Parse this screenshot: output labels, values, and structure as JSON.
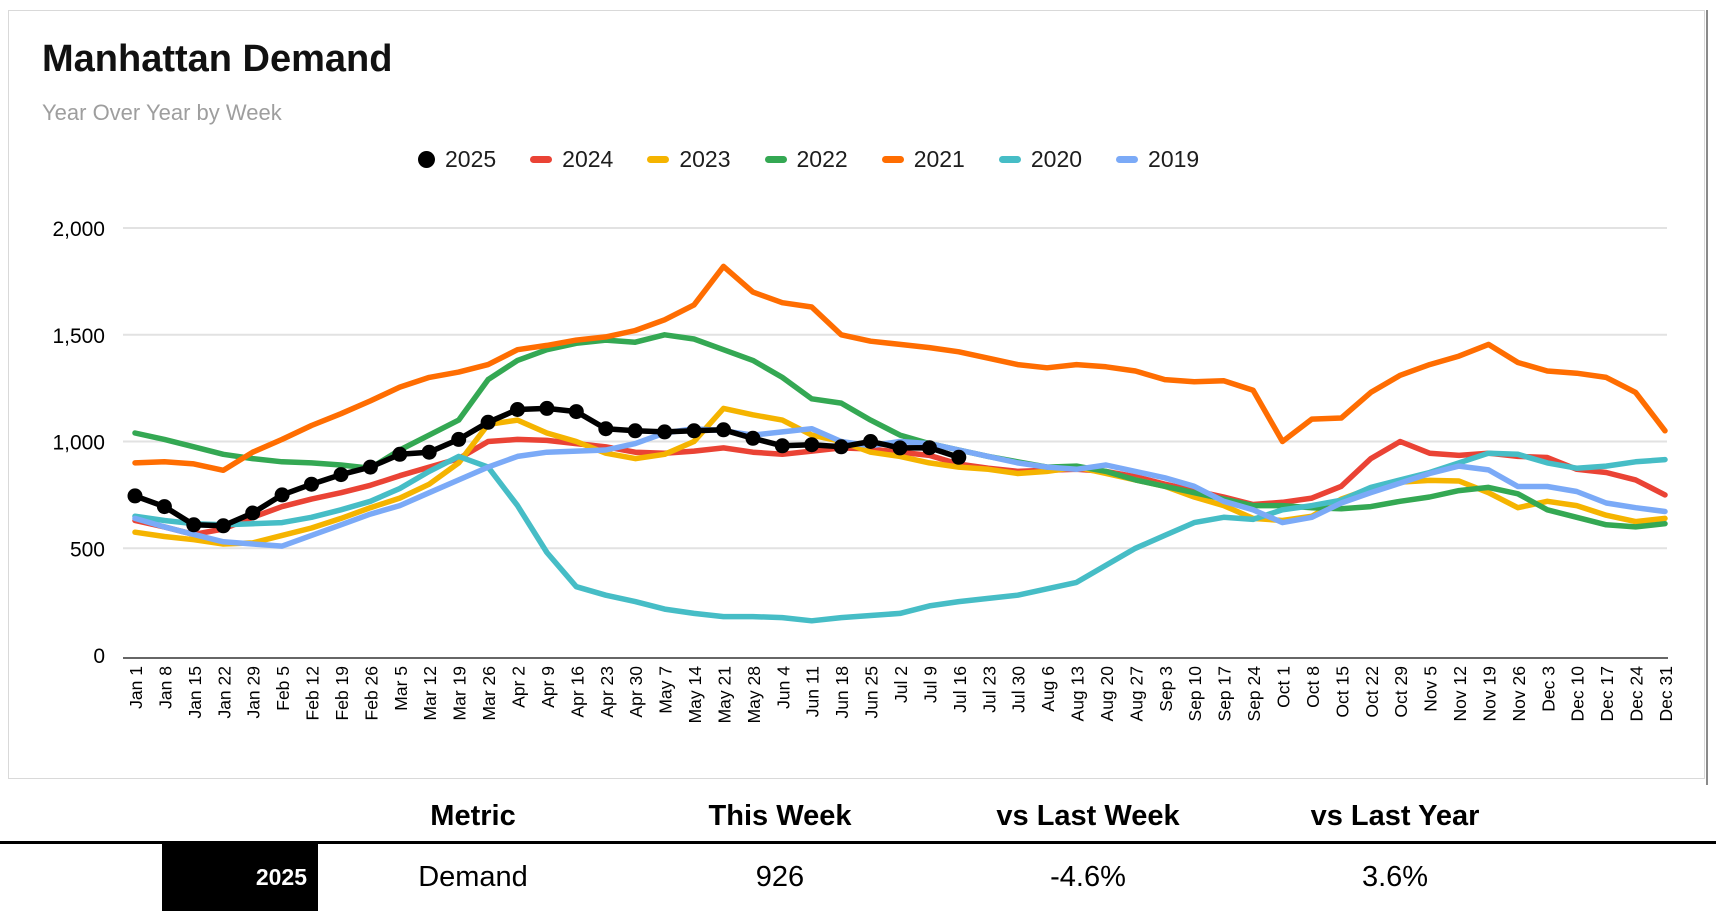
{
  "card": {
    "title": "Manhattan Demand",
    "subtitle": "Year Over Year by Week"
  },
  "chart_data": {
    "type": "line",
    "title": "Manhattan Demand",
    "subtitle": "Year Over Year by Week",
    "grid": true,
    "legend_position": "top",
    "ylim": [
      0,
      2000
    ],
    "y_ticks": [
      {
        "value": 2000,
        "label": "2,000"
      },
      {
        "value": 1500,
        "label": "1,500"
      },
      {
        "value": 1000,
        "label": "1,000"
      },
      {
        "value": 500,
        "label": "500"
      },
      {
        "value": 0,
        "label": "0"
      }
    ],
    "x_labels": [
      "Jan 1",
      "Jan 8",
      "Jan 15",
      "Jan 22",
      "Jan 29",
      "Feb 5",
      "Feb 12",
      "Feb 19",
      "Feb 26",
      "Mar 5",
      "Mar 12",
      "Mar 19",
      "Mar 26",
      "Apr 2",
      "Apr 9",
      "Apr 16",
      "Apr 23",
      "Apr 30",
      "May 7",
      "May 14",
      "May 21",
      "May 28",
      "Jun 4",
      "Jun 11",
      "Jun 18",
      "Jun 25",
      "Jul 2",
      "Jul 9",
      "Jul 16",
      "Jul 23",
      "Jul 30",
      "Aug 6",
      "Aug 13",
      "Aug 20",
      "Aug 27",
      "Sep 3",
      "Sep 10",
      "Sep 17",
      "Sep 24",
      "Oct 1",
      "Oct 8",
      "Oct 15",
      "Oct 22",
      "Oct 29",
      "Nov 5",
      "Nov 12",
      "Nov 19",
      "Nov 26",
      "Dec 3",
      "Dec 10",
      "Dec 17",
      "Dec 24",
      "Dec 31"
    ],
    "series": [
      {
        "name": "2024",
        "color": "#ea4335",
        "marker": "none",
        "values": [
          630,
          600,
          565,
          590,
          645,
          695,
          730,
          760,
          795,
          840,
          880,
          920,
          1000,
          1010,
          1005,
          990,
          975,
          950,
          945,
          955,
          970,
          950,
          940,
          955,
          970,
          965,
          950,
          935,
          894,
          875,
          860,
          865,
          870,
          860,
          835,
          800,
          770,
          740,
          705,
          715,
          735,
          790,
          920,
          1000,
          945,
          935,
          945,
          930,
          925,
          870,
          855,
          820,
          750
        ]
      },
      {
        "name": "2023",
        "color": "#f5b400",
        "marker": "none",
        "values": [
          575,
          555,
          540,
          520,
          525,
          560,
          595,
          640,
          690,
          735,
          800,
          900,
          1080,
          1100,
          1040,
          1000,
          945,
          920,
          940,
          1000,
          1155,
          1125,
          1100,
          1030,
          1000,
          950,
          930,
          900,
          880,
          870,
          850,
          860,
          880,
          850,
          820,
          790,
          740,
          700,
          640,
          630,
          650,
          730,
          780,
          810,
          818,
          815,
          760,
          690,
          720,
          700,
          655,
          625,
          640
        ]
      },
      {
        "name": "2022",
        "color": "#34a853",
        "marker": "none",
        "values": [
          1040,
          1010,
          975,
          940,
          920,
          905,
          900,
          890,
          875,
          960,
          1030,
          1100,
          1290,
          1380,
          1430,
          1460,
          1475,
          1465,
          1500,
          1480,
          1430,
          1380,
          1300,
          1200,
          1180,
          1100,
          1030,
          990,
          960,
          930,
          905,
          880,
          885,
          860,
          820,
          790,
          760,
          730,
          700,
          700,
          690,
          685,
          695,
          720,
          740,
          770,
          785,
          755,
          680,
          645,
          610,
          600,
          615
        ]
      },
      {
        "name": "2021",
        "color": "#ff6d01",
        "marker": "none",
        "values": [
          900,
          905,
          895,
          865,
          950,
          1010,
          1075,
          1130,
          1190,
          1255,
          1300,
          1325,
          1360,
          1430,
          1450,
          1475,
          1490,
          1520,
          1570,
          1640,
          1820,
          1700,
          1650,
          1630,
          1500,
          1470,
          1455,
          1440,
          1420,
          1390,
          1360,
          1345,
          1360,
          1350,
          1330,
          1290,
          1280,
          1285,
          1240,
          1000,
          1105,
          1110,
          1230,
          1310,
          1360,
          1400,
          1455,
          1370,
          1330,
          1320,
          1300,
          1230,
          1050
        ]
      },
      {
        "name": "2020",
        "color": "#46bdc6",
        "marker": "none",
        "values": [
          650,
          630,
          615,
          610,
          615,
          620,
          645,
          680,
          720,
          780,
          860,
          930,
          880,
          700,
          480,
          320,
          280,
          250,
          215,
          195,
          180,
          180,
          175,
          160,
          175,
          185,
          195,
          230,
          250,
          265,
          280,
          310,
          340,
          420,
          500,
          560,
          620,
          645,
          635,
          680,
          700,
          725,
          785,
          820,
          855,
          900,
          945,
          940,
          900,
          875,
          885,
          905,
          915
        ]
      },
      {
        "name": "2019",
        "color": "#7baaf7",
        "marker": "none",
        "values": [
          640,
          600,
          565,
          530,
          520,
          510,
          560,
          610,
          660,
          700,
          760,
          820,
          880,
          930,
          950,
          955,
          960,
          990,
          1040,
          1060,
          1050,
          1030,
          1045,
          1060,
          1000,
          980,
          1000,
          990,
          960,
          930,
          900,
          880,
          870,
          890,
          860,
          830,
          790,
          720,
          680,
          620,
          645,
          712,
          760,
          805,
          850,
          885,
          867,
          789,
          789,
          766,
          712,
          690,
          672
        ]
      },
      {
        "name": "2025",
        "color": "#000000",
        "marker": "circle",
        "values": [
          745,
          695,
          610,
          605,
          665,
          750,
          800,
          845,
          880,
          940,
          950,
          1010,
          1090,
          1150,
          1155,
          1140,
          1060,
          1050,
          1045,
          1050,
          1055,
          1015,
          980,
          985,
          975,
          1000,
          970,
          971,
          926
        ]
      }
    ],
    "legend_order": [
      "2025",
      "2024",
      "2023",
      "2022",
      "2021",
      "2020",
      "2019"
    ]
  },
  "table": {
    "headers": [
      "Metric",
      "This Week",
      "vs Last Week",
      "vs Last Year"
    ],
    "row": {
      "year": "2025",
      "metric": "Demand",
      "this_week": "926",
      "vs_last_week": "-4.6%",
      "vs_last_year": "3.6%"
    }
  }
}
